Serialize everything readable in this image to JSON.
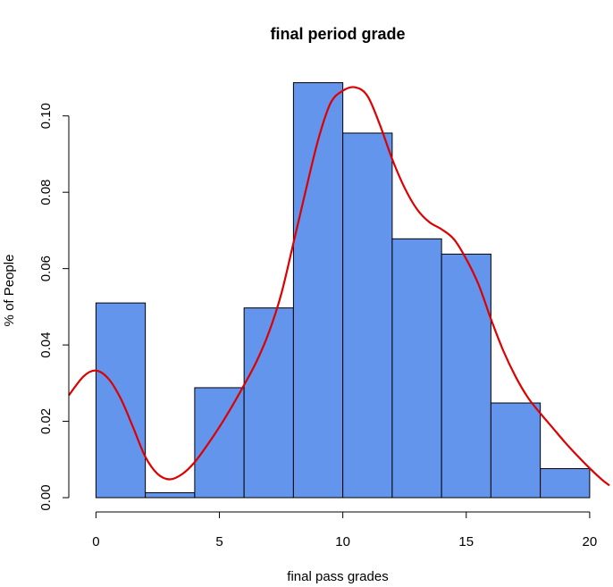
{
  "chart_data": {
    "type": "bar",
    "title": "final period grade",
    "xlabel": "final pass grades",
    "ylabel": "% of People",
    "bins": [
      {
        "x0": 0,
        "x1": 2,
        "value": 0.051
      },
      {
        "x0": 2,
        "x1": 4,
        "value": 0.0013
      },
      {
        "x0": 4,
        "x1": 6,
        "value": 0.0288
      },
      {
        "x0": 6,
        "x1": 8,
        "value": 0.0497
      },
      {
        "x0": 8,
        "x1": 10,
        "value": 0.1087
      },
      {
        "x0": 10,
        "x1": 12,
        "value": 0.0955
      },
      {
        "x0": 12,
        "x1": 14,
        "value": 0.0678
      },
      {
        "x0": 14,
        "x1": 16,
        "value": 0.0638
      },
      {
        "x0": 16,
        "x1": 18,
        "value": 0.0248
      },
      {
        "x0": 18,
        "x1": 20,
        "value": 0.0076
      }
    ],
    "density_curve": {
      "x": [
        -1.1,
        -0.5,
        0,
        0.5,
        1,
        1.5,
        2,
        2.5,
        3,
        3.5,
        4,
        4.5,
        5,
        5.5,
        6,
        6.5,
        7,
        7.5,
        8,
        8.5,
        9,
        9.5,
        10,
        10.5,
        11,
        11.5,
        12,
        12.5,
        13,
        13.5,
        14,
        14.5,
        15,
        15.5,
        16,
        16.5,
        17,
        17.5,
        18,
        18.5,
        19,
        19.5,
        20,
        20.5,
        20.8
      ],
      "y": [
        0.0268,
        0.0318,
        0.0333,
        0.0312,
        0.026,
        0.0185,
        0.0107,
        0.0062,
        0.0048,
        0.0062,
        0.0093,
        0.0137,
        0.0185,
        0.0238,
        0.0295,
        0.0356,
        0.0432,
        0.0532,
        0.0667,
        0.0805,
        0.0937,
        0.1033,
        0.1066,
        0.1075,
        0.1052,
        0.0977,
        0.0887,
        0.0812,
        0.0756,
        0.0722,
        0.0703,
        0.0677,
        0.0625,
        0.0558,
        0.0468,
        0.0385,
        0.0317,
        0.0262,
        0.0221,
        0.0183,
        0.0145,
        0.011,
        0.0077,
        0.0047,
        0.0032
      ],
      "color": "#dd0000"
    },
    "bar_color": "#6495ed",
    "xlim": [
      -1.1,
      20.8
    ],
    "ylim": [
      0,
      0.11
    ],
    "x_ticks": [
      0,
      5,
      10,
      15,
      20
    ],
    "x_tick_labels": [
      "0",
      "5",
      "10",
      "15",
      "20"
    ],
    "y_ticks": [
      0,
      0.02,
      0.04,
      0.06,
      0.08,
      0.1
    ],
    "y_tick_labels": [
      "0.00",
      "0.02",
      "0.04",
      "0.06",
      "0.08",
      "0.10"
    ],
    "grid": false,
    "legend": "none"
  }
}
